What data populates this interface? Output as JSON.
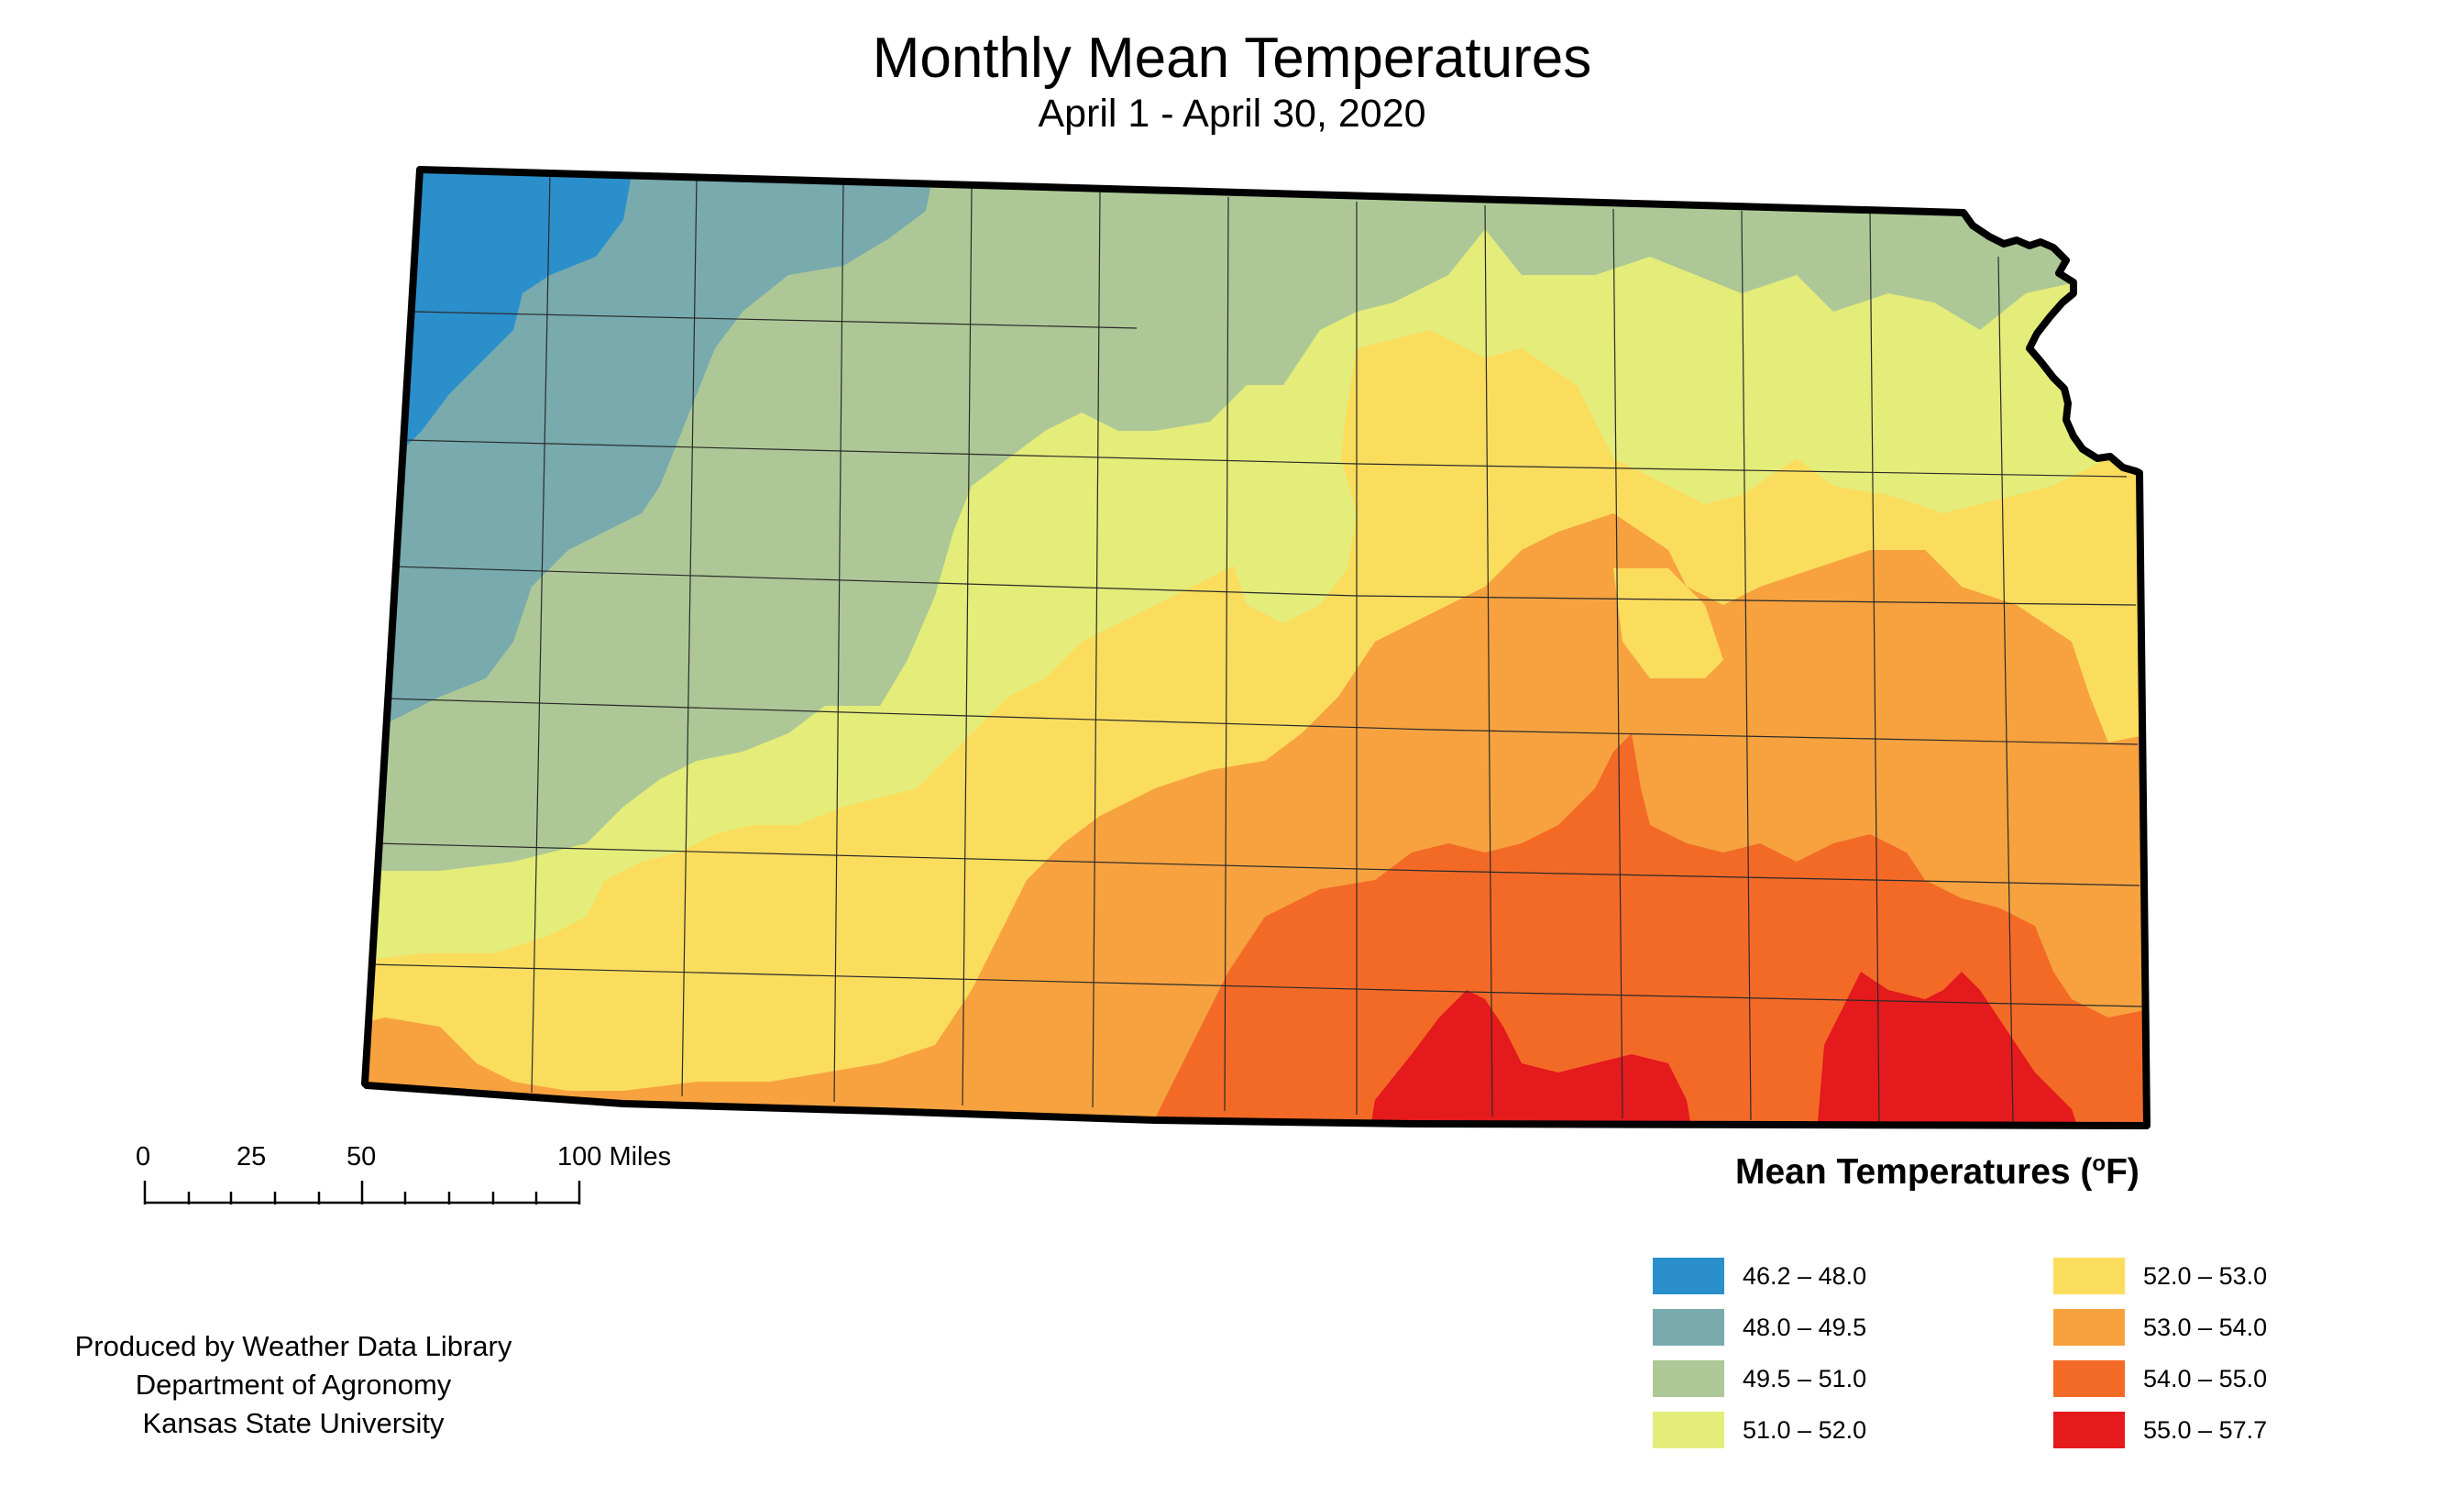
{
  "title": "Monthly Mean Temperatures",
  "subtitle": "April 1 - April 30, 2020",
  "legend": {
    "title": "Mean Temperatures (",
    "unit_degree": "o",
    "unit_rest": "F)",
    "items": [
      {
        "label": "46.2 – 48.0",
        "color": "#2b8fcb"
      },
      {
        "label": "48.0 – 49.5",
        "color": "#78aaae"
      },
      {
        "label": "49.5 – 51.0",
        "color": "#adc896"
      },
      {
        "label": "51.0 – 52.0",
        "color": "#e4ec7a"
      },
      {
        "label": "52.0 – 53.0",
        "color": "#fbdd5e"
      },
      {
        "label": "53.0 – 54.0",
        "color": "#f7a23f"
      },
      {
        "label": "54.0 – 55.0",
        "color": "#f36a27"
      },
      {
        "label": "55.0 – 57.7",
        "color": "#e41a1c"
      }
    ]
  },
  "scalebar": {
    "labels": [
      "0",
      "25",
      "50",
      "100 Miles"
    ]
  },
  "credits": [
    "Produced by Weather Data Library",
    "Department of Agronomy",
    "Kansas State University"
  ]
}
